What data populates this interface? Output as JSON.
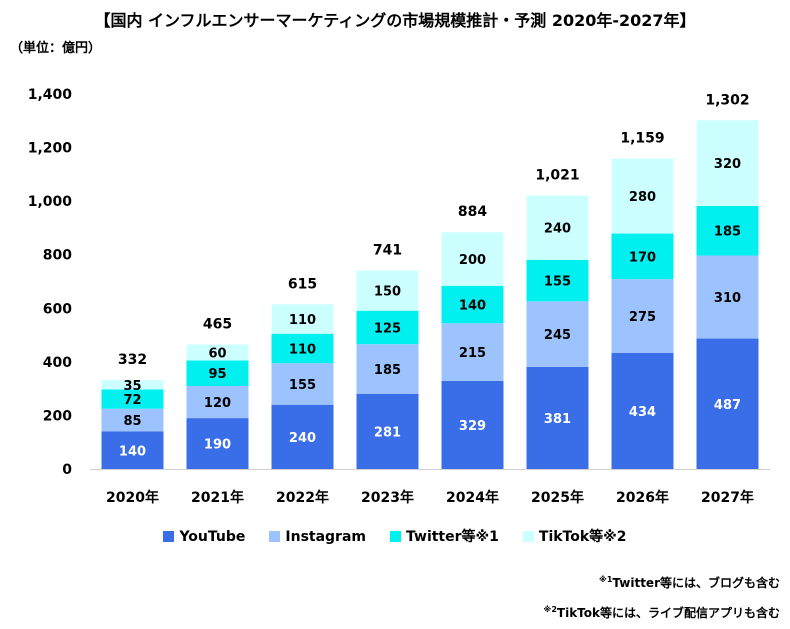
{
  "title": "【国内 インフルエンサーマーケティングの市場規模推計・予測 2020年-2027年】",
  "unit": "（単位：億円）",
  "chart_data": {
    "type": "bar",
    "stacked": true,
    "categories": [
      "2020年",
      "2021年",
      "2022年",
      "2023年",
      "2024年",
      "2025年",
      "2026年",
      "2027年"
    ],
    "series": [
      {
        "name": "YouTube",
        "color": "#3a6ee8",
        "label_color": "#ffffff",
        "values": [
          140,
          190,
          240,
          281,
          329,
          381,
          434,
          487
        ]
      },
      {
        "name": "Instagram",
        "color": "#9dc3ff",
        "label_color": "#000000",
        "values": [
          85,
          120,
          155,
          185,
          215,
          245,
          275,
          310
        ]
      },
      {
        "name": "Twitter等※1",
        "color": "#00f0f0",
        "label_color": "#000000",
        "values": [
          72,
          95,
          110,
          125,
          140,
          155,
          170,
          185
        ]
      },
      {
        "name": "TikTok等※2",
        "color": "#ccffff",
        "label_color": "#000000",
        "values": [
          35,
          60,
          110,
          150,
          200,
          240,
          280,
          320
        ]
      }
    ],
    "totals": [
      "332",
      "465",
      "615",
      "741",
      "884",
      "1,021",
      "1,159",
      "1,302"
    ],
    "y_ticks": [
      "0",
      "200",
      "400",
      "600",
      "800",
      "1,000",
      "1,200",
      "1,400"
    ],
    "ylim": [
      0,
      1400
    ],
    "grid": false,
    "legend_position": "bottom"
  },
  "notes": {
    "note1_mark": "※1",
    "note1_text": "Twitter等には、ブログも含む",
    "note2_mark": "※2",
    "note2_text": "TikTok等には、ライブ配信アプリも含む"
  }
}
